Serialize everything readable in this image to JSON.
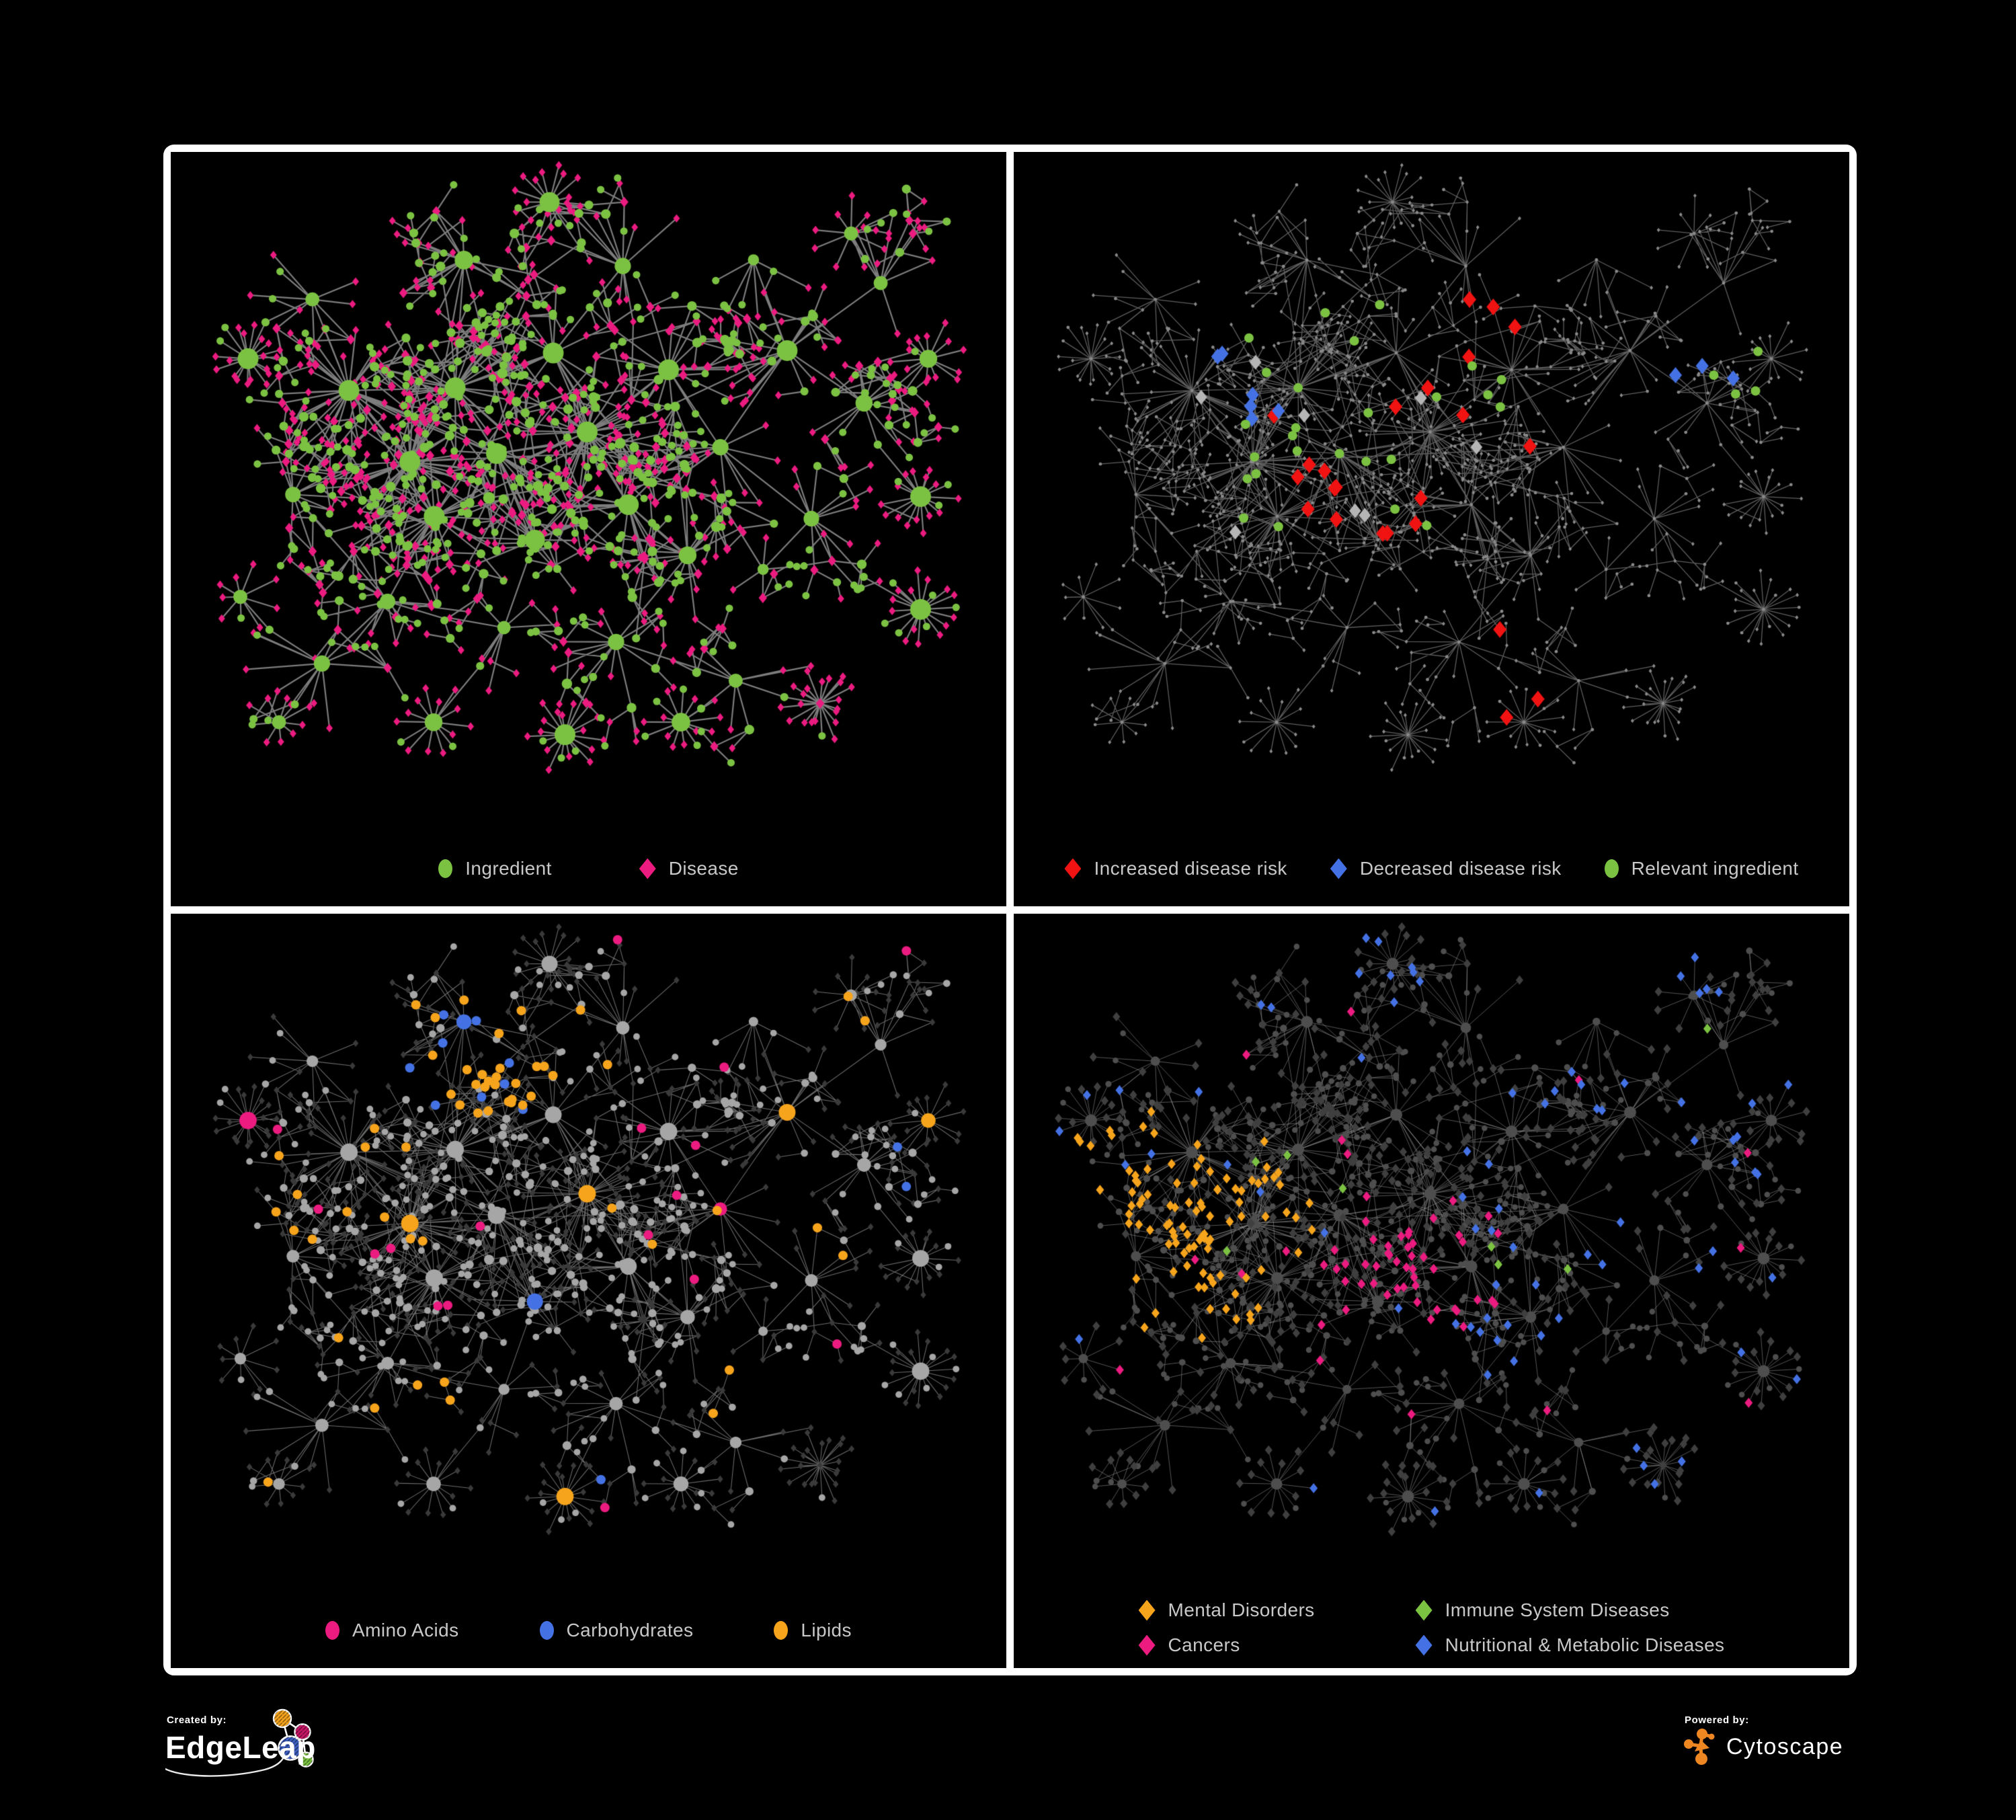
{
  "canvas": {
    "background": "#000000",
    "frame_color": "#ffffff"
  },
  "panels": [
    {
      "id": "ingredient-disease",
      "legend_layout": "row",
      "legend_gap": 130,
      "legend": [
        {
          "shape": "circle",
          "color": "#7CC242",
          "label": "Ingredient"
        },
        {
          "shape": "diamond",
          "color": "#EB1B80",
          "label": "Disease"
        }
      ]
    },
    {
      "id": "disease-risk",
      "legend_layout": "row",
      "legend_gap": 64,
      "legend": [
        {
          "shape": "diamond",
          "color": "#F11212",
          "label": "Increased disease risk"
        },
        {
          "shape": "diamond",
          "color": "#4472E4",
          "label": "Decreased disease risk"
        },
        {
          "shape": "circle",
          "color": "#7CC242",
          "label": "Relevant ingredient"
        }
      ]
    },
    {
      "id": "macronutrients",
      "legend_layout": "row",
      "legend_gap": 120,
      "legend": [
        {
          "shape": "circle",
          "color": "#EB1B80",
          "label": "Amino Acids"
        },
        {
          "shape": "circle",
          "color": "#4472E4",
          "label": "Carbohydrates"
        },
        {
          "shape": "circle",
          "color": "#F6A41C",
          "label": "Lipids"
        }
      ]
    },
    {
      "id": "disease-classes",
      "legend_layout": "grid",
      "legend": [
        {
          "shape": "diamond",
          "color": "#F6A41C",
          "label": "Mental Disorders"
        },
        {
          "shape": "diamond",
          "color": "#7CC242",
          "label": "Immune System Diseases"
        },
        {
          "shape": "diamond",
          "color": "#EB1B80",
          "label": "Cancers"
        },
        {
          "shape": "diamond",
          "color": "#4472E4",
          "label": "Nutritional & Metabolic Diseases"
        }
      ]
    }
  ],
  "network_style": {
    "palette": {
      "green": "#7CC242",
      "pink": "#EB1B80",
      "red": "#F11212",
      "blue": "#4472E4",
      "orange": "#F6A41C",
      "neutral_gray": "#B5B5B5"
    },
    "panel_styles": {
      "ingredient-disease": {
        "edge": "#8B8B8B",
        "ingredient": "#7CC242",
        "disease": "#EB1B80"
      },
      "disease-risk": {
        "edge": "#6F6F6F",
        "base": "#8A8A8A",
        "increased": "#F11212",
        "decreased": "#4472E4",
        "neutral": "#B5B5B5",
        "relevant": "#7CC242"
      },
      "macronutrients": {
        "edge": "#B0B0B0",
        "ingredient_base": "#A6A6A6",
        "disease_base": "#3A3A3A",
        "amino_acids": "#EB1B80",
        "carbohydrates": "#4472E4",
        "lipids": "#F6A41C"
      },
      "disease-classes": {
        "edge": "#9A9A9A",
        "ingredient_base": "#4E4E4E",
        "disease_base": "#3F3F3F",
        "mental": "#F6A41C",
        "immune": "#7CC242",
        "cancers": "#EB1B80",
        "nutritional": "#4472E4"
      }
    }
  },
  "footer": {
    "created_by_label": "Created by:",
    "created_by_brand": "EdgeLeap",
    "powered_by_label": "Powered by:",
    "powered_by_brand": "Cytoscape"
  }
}
